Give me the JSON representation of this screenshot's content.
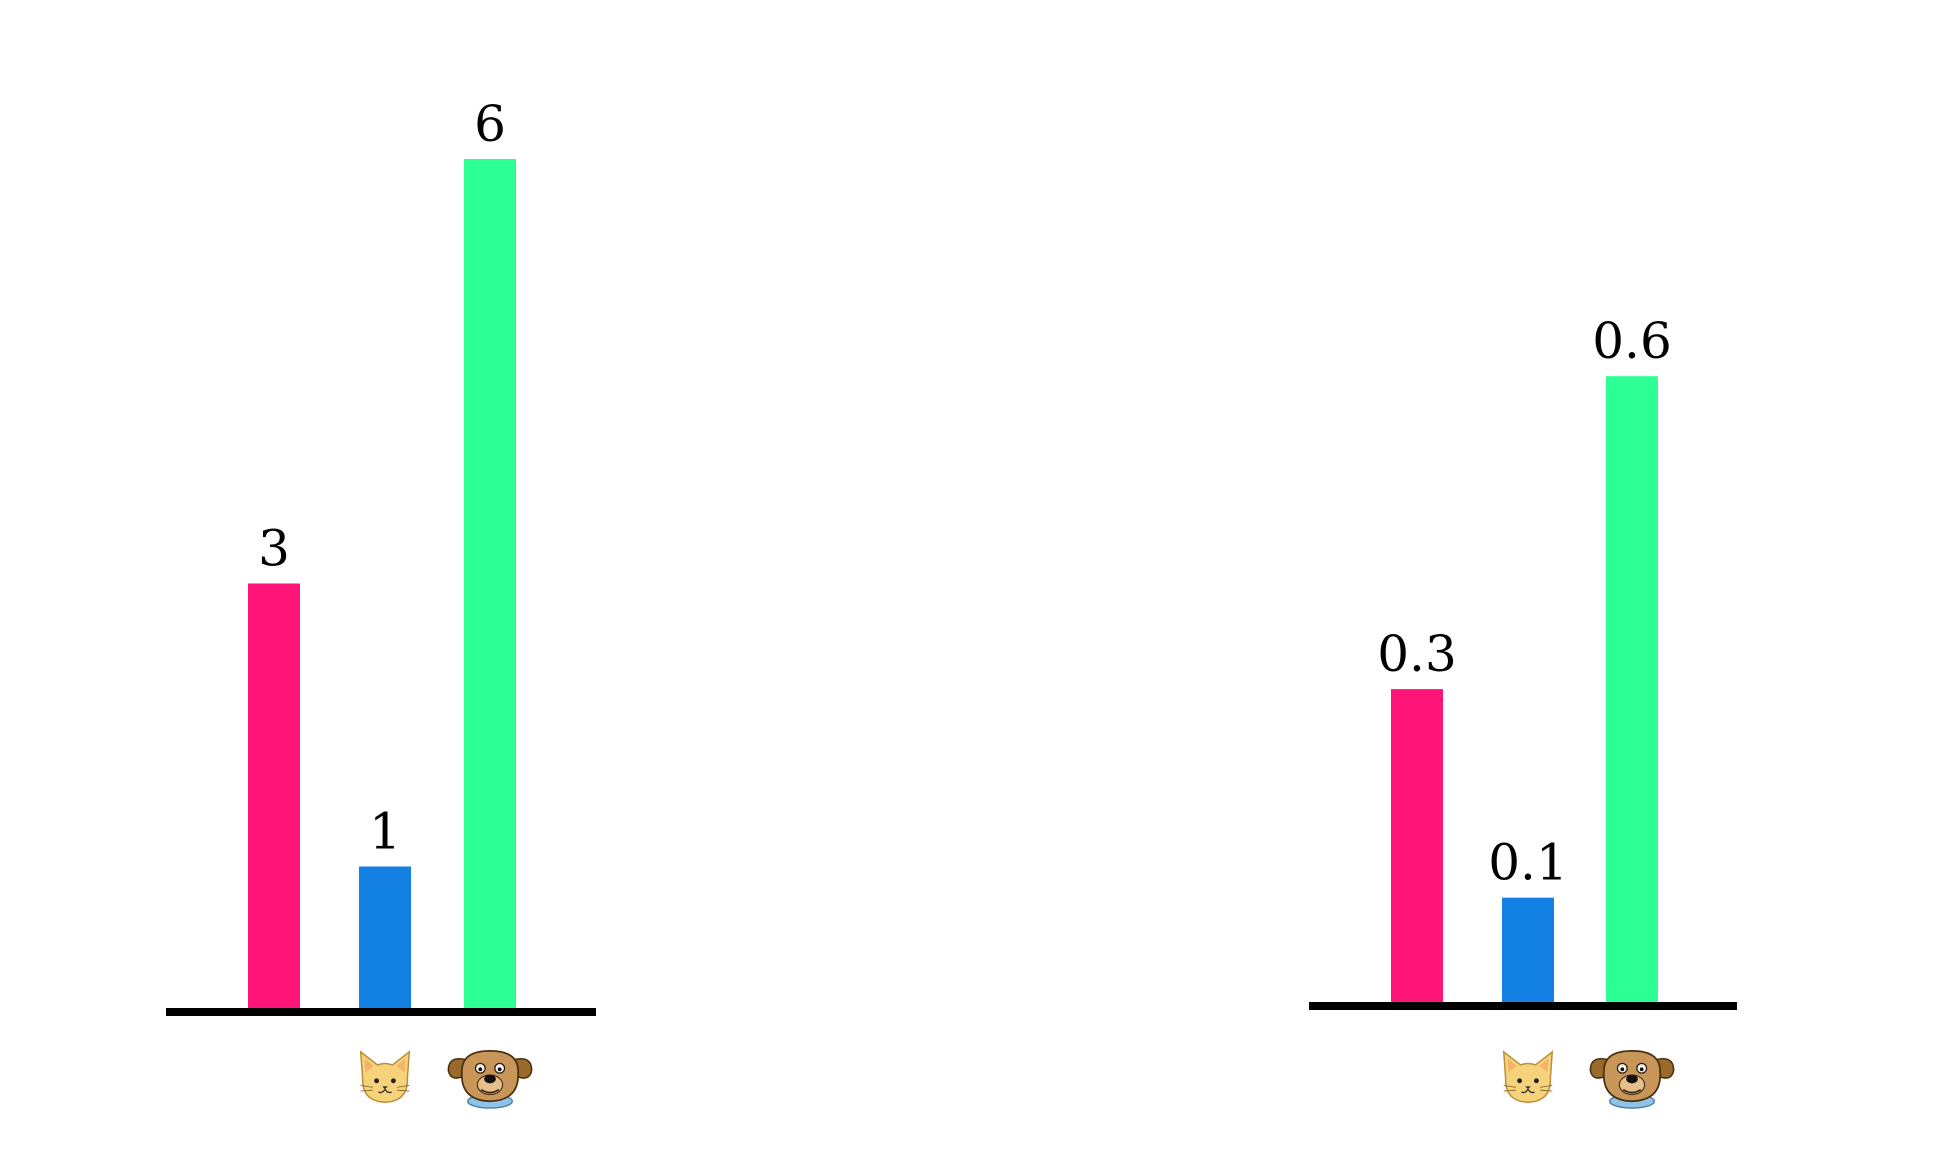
{
  "chart_data": [
    {
      "type": "bar",
      "categories": [
        "",
        "cat",
        "dog"
      ],
      "values": [
        3,
        1,
        6
      ],
      "data_labels": [
        "3",
        "1",
        "6"
      ],
      "colors": [
        "#FF1577",
        "#1380E3",
        "#2CFF94"
      ],
      "category_icons": [
        "",
        "cat-face-icon",
        "dog-face-icon"
      ],
      "title": "",
      "xlabel": "",
      "ylabel": "",
      "ylim": [
        0,
        6
      ],
      "grid": false
    },
    {
      "type": "bar",
      "categories": [
        "",
        "cat",
        "dog"
      ],
      "values": [
        0.3,
        0.1,
        0.6
      ],
      "data_labels": [
        "0.3",
        "0.1",
        "0.6"
      ],
      "colors": [
        "#FF1577",
        "#1380E3",
        "#2CFF94"
      ],
      "category_icons": [
        "",
        "cat-face-icon",
        "dog-face-icon"
      ],
      "title": "",
      "xlabel": "",
      "ylabel": "",
      "ylim": [
        0,
        1
      ],
      "grid": false
    }
  ]
}
